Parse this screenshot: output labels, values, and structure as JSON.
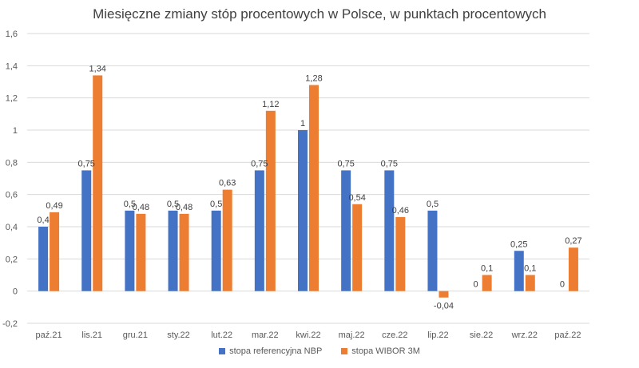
{
  "chart_data": {
    "type": "bar",
    "title": "Miesięczne zmiany stóp procentowych w Polsce, w punktach procentowych",
    "categories": [
      "paź.21",
      "lis.21",
      "gru.21",
      "sty.22",
      "lut.22",
      "mar.22",
      "kwi.22",
      "maj.22",
      "cze.22",
      "lip.22",
      "sie.22",
      "wrz.22",
      "paź.22"
    ],
    "series": [
      {
        "name": "stopa referencyjna NBP",
        "color": "#4472C4",
        "values": [
          0.4,
          0.75,
          0.5,
          0.5,
          0.5,
          0.75,
          1,
          0.75,
          0.75,
          0.5,
          0,
          0.25,
          0
        ],
        "labels": [
          "0,4",
          "0,75",
          "0,5",
          "0,5",
          "0,5",
          "0,75",
          "1",
          "0,75",
          "0,75",
          "0,5",
          "0",
          "0,25",
          "0"
        ]
      },
      {
        "name": "stopa WIBOR 3M",
        "color": "#ED7D31",
        "values": [
          0.49,
          1.34,
          0.48,
          0.48,
          0.63,
          1.12,
          1.28,
          0.54,
          0.46,
          -0.04,
          0.1,
          0.1,
          0.27
        ],
        "labels": [
          "0,49",
          "1,34",
          "0,48",
          "0,48",
          "0,63",
          "1,12",
          "1,28",
          "0,54",
          "0,46",
          "-0,04",
          "0,1",
          "0,1",
          "0,27"
        ]
      }
    ],
    "ylim": [
      -0.2,
      1.6
    ],
    "yticks": [
      -0.2,
      0,
      0.2,
      0.4,
      0.6,
      0.8,
      1,
      1.2,
      1.4,
      1.6
    ],
    "ytick_labels": [
      "-0,2",
      "0",
      "0,2",
      "0,4",
      "0,6",
      "0,8",
      "1",
      "1,2",
      "1,4",
      "1,6"
    ],
    "grid": true,
    "legend_position": "bottom",
    "xlabel": "",
    "ylabel": ""
  }
}
